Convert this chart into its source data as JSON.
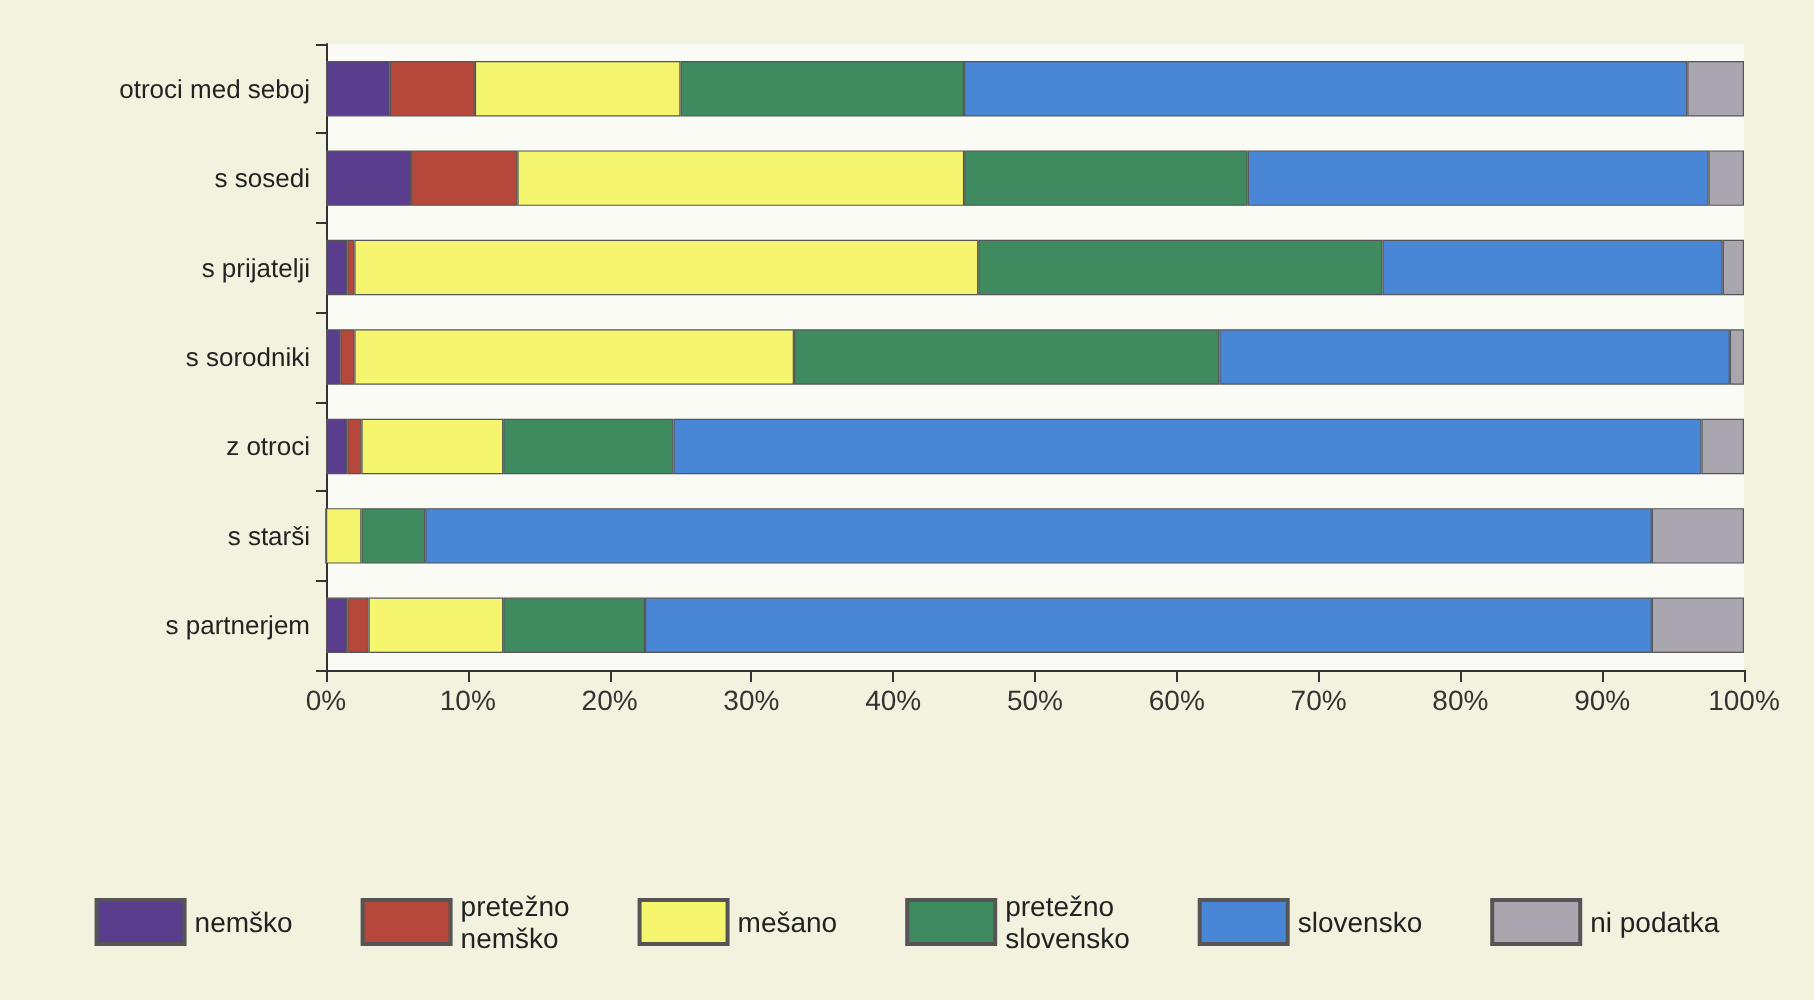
{
  "chart_data": {
    "type": "bar",
    "orientation": "horizontal",
    "stacked": true,
    "categories": [
      "otroci med seboj",
      "s sosedi",
      "s prijatelji",
      "s sorodniki",
      "z otroci",
      "s starši",
      "s partnerjem"
    ],
    "series": [
      {
        "name": "nemško",
        "color": "#5a3d8c",
        "values": [
          4.5,
          6,
          1.5,
          1,
          1.5,
          0,
          1.5
        ]
      },
      {
        "name": "pretežno nemško",
        "color": "#b5483a",
        "values": [
          6,
          7.5,
          0.5,
          1,
          1,
          0,
          1.5
        ]
      },
      {
        "name": "mešano",
        "color": "#f5f56e",
        "values": [
          14.5,
          31.5,
          44,
          31,
          10,
          2.5,
          9.5
        ]
      },
      {
        "name": "pretežno slovensko",
        "color": "#3f8a5e",
        "values": [
          20,
          20,
          28.5,
          30,
          12,
          4.5,
          10
        ]
      },
      {
        "name": "slovensko",
        "color": "#4a86d6",
        "values": [
          51,
          32.5,
          24,
          36,
          72.5,
          86.5,
          71
        ]
      },
      {
        "name": "ni podatka",
        "color": "#a9a6b0",
        "values": [
          4,
          2.5,
          1.5,
          1,
          3,
          6.5,
          6.5
        ]
      }
    ],
    "xlim": [
      0,
      100
    ],
    "xticks": [
      {
        "value": 0,
        "label": "0%"
      },
      {
        "value": 10,
        "label": "10%"
      },
      {
        "value": 20,
        "label": "20%"
      },
      {
        "value": 30,
        "label": "30%"
      },
      {
        "value": 40,
        "label": "40%"
      },
      {
        "value": 50,
        "label": "50%"
      },
      {
        "value": 60,
        "label": "60%"
      },
      {
        "value": 70,
        "label": "70%"
      },
      {
        "value": 80,
        "label": "80%"
      },
      {
        "value": 90,
        "label": "90%"
      },
      {
        "value": 100,
        "label": "100%"
      }
    ],
    "grid": false,
    "legend": "bottom"
  }
}
